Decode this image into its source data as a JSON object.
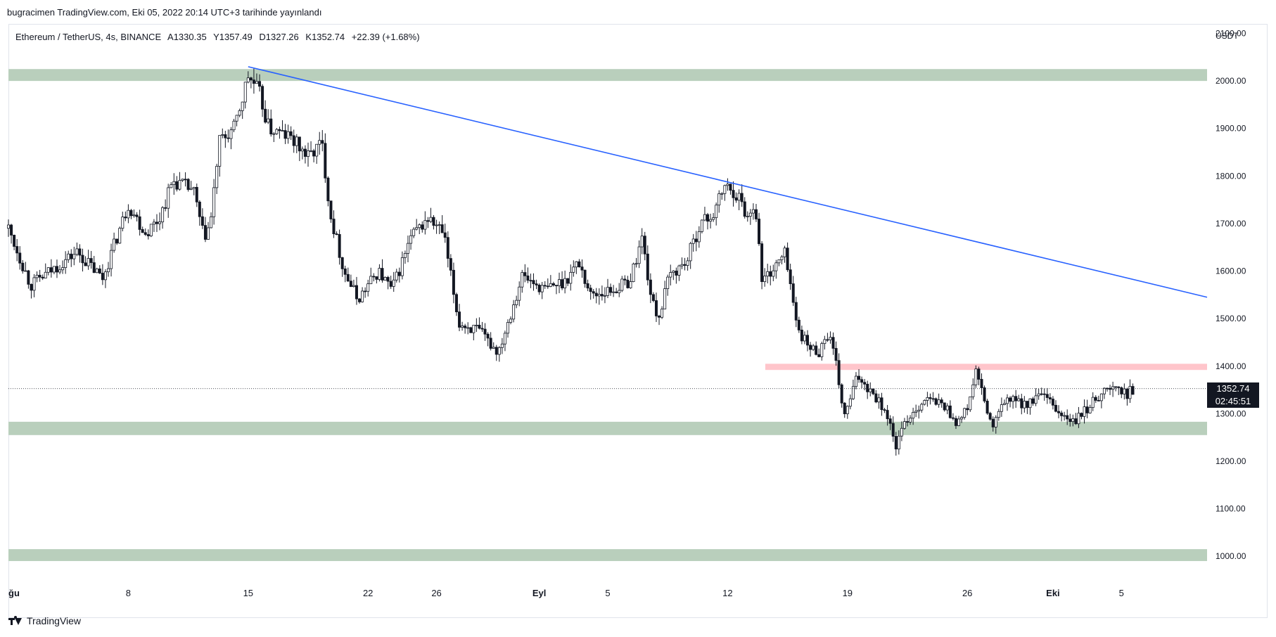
{
  "header": {
    "published": "bugracimen TradingView.com, Eki 05, 2022 20:14 UTC+3 tarihinde yayınlandı"
  },
  "symbol": {
    "name": "Ethereum / TetherUS, 4s, BINANCE",
    "open": "A1330.35",
    "high": "Y1357.49",
    "low": "D1327.26",
    "close": "K1352.74",
    "change": "+22.39 (+1.68%)"
  },
  "footer": {
    "brand": "TradingView",
    "logo_icon": "tradingview-logo-icon"
  },
  "price_badge": {
    "price": "1352.74",
    "countdown": "02:45:51"
  },
  "colors": {
    "support_zone": "#b9cfbc",
    "resistance_zone": "#ffc5cb",
    "trendline": "#2962ff",
    "candle": "#131722"
  },
  "chart_data": {
    "type": "candlestick",
    "title": "",
    "ylabel": "USDT",
    "ylim": [
      950,
      2120
    ],
    "y_ticks": [
      "2100.00",
      "2000.00",
      "1900.00",
      "1800.00",
      "1700.00",
      "1600.00",
      "1500.00",
      "1400.00",
      "1300.00",
      "1200.00",
      "1100.00",
      "1000.00"
    ],
    "x_ticks": [
      "ğu",
      "8",
      "15",
      "22",
      "26",
      "Eyl",
      "5",
      "12",
      "19",
      "26",
      "Eki",
      "5"
    ],
    "x_tick_days": [
      1,
      8,
      15,
      22,
      26,
      32,
      36,
      43,
      50,
      57,
      62,
      66
    ],
    "x_range_days": [
      1,
      71
    ],
    "last_price": 1352.74,
    "key_points": [
      {
        "day": 1,
        "price": 1690
      },
      {
        "day": 2.3,
        "price": 1570
      },
      {
        "day": 5,
        "price": 1640
      },
      {
        "day": 6.5,
        "price": 1585
      },
      {
        "day": 8,
        "price": 1740
      },
      {
        "day": 9,
        "price": 1680
      },
      {
        "day": 9.8,
        "price": 1710
      },
      {
        "day": 10.6,
        "price": 1790
      },
      {
        "day": 11.8,
        "price": 1770
      },
      {
        "day": 12.4,
        "price": 1670
      },
      {
        "day": 12.8,
        "price": 1700
      },
      {
        "day": 13.3,
        "price": 1870
      },
      {
        "day": 14.2,
        "price": 1900
      },
      {
        "day": 15.0,
        "price": 2010
      },
      {
        "day": 15.6,
        "price": 1980
      },
      {
        "day": 16.2,
        "price": 1900
      },
      {
        "day": 17.5,
        "price": 1880
      },
      {
        "day": 18.5,
        "price": 1840
      },
      {
        "day": 19.3,
        "price": 1870
      },
      {
        "day": 19.8,
        "price": 1720
      },
      {
        "day": 20.6,
        "price": 1600
      },
      {
        "day": 21.4,
        "price": 1540
      },
      {
        "day": 22.6,
        "price": 1600
      },
      {
        "day": 23.4,
        "price": 1560
      },
      {
        "day": 24.5,
        "price": 1670
      },
      {
        "day": 25.5,
        "price": 1710
      },
      {
        "day": 26.4,
        "price": 1680
      },
      {
        "day": 27.3,
        "price": 1490
      },
      {
        "day": 28.4,
        "price": 1475
      },
      {
        "day": 29.6,
        "price": 1430
      },
      {
        "day": 30.4,
        "price": 1520
      },
      {
        "day": 31.0,
        "price": 1590
      },
      {
        "day": 32.3,
        "price": 1560
      },
      {
        "day": 33.5,
        "price": 1580
      },
      {
        "day": 34.3,
        "price": 1620
      },
      {
        "day": 35.0,
        "price": 1550
      },
      {
        "day": 36.3,
        "price": 1560
      },
      {
        "day": 37.3,
        "price": 1580
      },
      {
        "day": 38.0,
        "price": 1670
      },
      {
        "day": 38.6,
        "price": 1530
      },
      {
        "day": 39.0,
        "price": 1505
      },
      {
        "day": 39.6,
        "price": 1590
      },
      {
        "day": 40.6,
        "price": 1620
      },
      {
        "day": 41.4,
        "price": 1700
      },
      {
        "day": 42.2,
        "price": 1720
      },
      {
        "day": 42.8,
        "price": 1780
      },
      {
        "day": 43.6,
        "price": 1760
      },
      {
        "day": 44.2,
        "price": 1710
      },
      {
        "day": 44.6,
        "price": 1750
      },
      {
        "day": 45.0,
        "price": 1580
      },
      {
        "day": 45.8,
        "price": 1610
      },
      {
        "day": 46.4,
        "price": 1640
      },
      {
        "day": 47.0,
        "price": 1490
      },
      {
        "day": 47.7,
        "price": 1440
      },
      {
        "day": 48.3,
        "price": 1430
      },
      {
        "day": 48.9,
        "price": 1470
      },
      {
        "day": 49.4,
        "price": 1390
      },
      {
        "day": 49.8,
        "price": 1290
      },
      {
        "day": 50.6,
        "price": 1380
      },
      {
        "day": 51.6,
        "price": 1340
      },
      {
        "day": 52.3,
        "price": 1300
      },
      {
        "day": 52.8,
        "price": 1230
      },
      {
        "day": 53.5,
        "price": 1290
      },
      {
        "day": 54.5,
        "price": 1330
      },
      {
        "day": 55.6,
        "price": 1320
      },
      {
        "day": 56.4,
        "price": 1280
      },
      {
        "day": 57.0,
        "price": 1310
      },
      {
        "day": 57.5,
        "price": 1390
      },
      {
        "day": 58.1,
        "price": 1310
      },
      {
        "day": 58.5,
        "price": 1270
      },
      {
        "day": 59.2,
        "price": 1330
      },
      {
        "day": 60.6,
        "price": 1320
      },
      {
        "day": 61.3,
        "price": 1340
      },
      {
        "day": 62.4,
        "price": 1300
      },
      {
        "day": 63.2,
        "price": 1280
      },
      {
        "day": 64.0,
        "price": 1310
      },
      {
        "day": 64.8,
        "price": 1345
      },
      {
        "day": 65.7,
        "price": 1355
      },
      {
        "day": 66.2,
        "price": 1340
      },
      {
        "day": 66.7,
        "price": 1352
      }
    ],
    "zones": [
      {
        "kind": "support",
        "from_day": 1,
        "to_day": 71,
        "low": 2000,
        "high": 2025
      },
      {
        "kind": "support",
        "from_day": 1,
        "to_day": 71,
        "low": 1255,
        "high": 1283
      },
      {
        "kind": "support",
        "from_day": 1,
        "to_day": 71,
        "low": 990,
        "high": 1015
      },
      {
        "kind": "resistance",
        "from_day": 45.2,
        "to_day": 71,
        "low": 1392,
        "high": 1405
      }
    ],
    "trendline": {
      "from": {
        "day": 15.0,
        "price": 2030
      },
      "to": {
        "day": 71,
        "price": 1545
      }
    }
  }
}
